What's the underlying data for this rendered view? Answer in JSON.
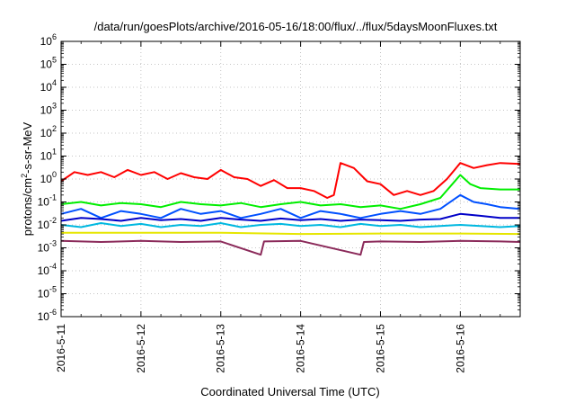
{
  "chart_data": {
    "type": "line",
    "title": "/data/run/goesPlots/archive/2016-05-16/18:00/flux/../flux/5daysMoonFluxes.txt",
    "xlabel": "Coordinated Universal Time (UTC)",
    "ylabel": {
      "base": "protons/cm",
      "sup": "2",
      "rest": "-s-sr-MeV"
    },
    "xscale": "time",
    "yscale": "log",
    "xlim": [
      "2016-05-11",
      "2016-05-16 18:00"
    ],
    "ylim": [
      1e-06,
      1000000.0
    ],
    "x_ticks": [
      "2016-5-11",
      "2016-5-12",
      "2016-5-13",
      "2016-5-14",
      "2016-5-15",
      "2016-5-16"
    ],
    "y_ticks": [
      {
        "value": -6,
        "base": "10",
        "exp": "-6"
      },
      {
        "value": -5,
        "base": "10",
        "exp": "-5"
      },
      {
        "value": -4,
        "base": "10",
        "exp": "-4"
      },
      {
        "value": -3,
        "base": "10",
        "exp": "-3"
      },
      {
        "value": -2,
        "base": "10",
        "exp": "-2"
      },
      {
        "value": -1,
        "base": "10",
        "exp": "-1"
      },
      {
        "value": 0,
        "base": "10",
        "exp": "0"
      },
      {
        "value": 1,
        "base": "10",
        "exp": "1"
      },
      {
        "value": 2,
        "base": "10",
        "exp": "2"
      },
      {
        "value": 3,
        "base": "10",
        "exp": "3"
      },
      {
        "value": 4,
        "base": "10",
        "exp": "4"
      },
      {
        "value": 5,
        "base": "10",
        "exp": "5"
      },
      {
        "value": 6,
        "base": "10",
        "exp": "6"
      }
    ],
    "grid": true,
    "series": [
      {
        "color": "#ff0000",
        "x": [
          "2016-05-11 00:00",
          "2016-05-11 04:00",
          "2016-05-11 08:00",
          "2016-05-11 12:00",
          "2016-05-11 16:00",
          "2016-05-11 20:00",
          "2016-05-12 00:00",
          "2016-05-12 04:00",
          "2016-05-12 08:00",
          "2016-05-12 12:00",
          "2016-05-12 16:00",
          "2016-05-12 20:00",
          "2016-05-13 00:00",
          "2016-05-13 04:00",
          "2016-05-13 08:00",
          "2016-05-13 12:00",
          "2016-05-13 16:00",
          "2016-05-13 20:00",
          "2016-05-14 00:00",
          "2016-05-14 04:00",
          "2016-05-14 08:00",
          "2016-05-14 10:00",
          "2016-05-14 12:00",
          "2016-05-14 16:00",
          "2016-05-14 20:00",
          "2016-05-15 00:00",
          "2016-05-15 04:00",
          "2016-05-15 08:00",
          "2016-05-15 12:00",
          "2016-05-15 16:00",
          "2016-05-15 20:00",
          "2016-05-16 00:00",
          "2016-05-16 04:00",
          "2016-05-16 08:00",
          "2016-05-16 12:00",
          "2016-05-16 18:00"
        ],
        "y": [
          0.8,
          2.0,
          1.5,
          2.0,
          1.2,
          2.5,
          1.5,
          2.0,
          1.0,
          1.8,
          1.2,
          1.0,
          2.5,
          1.2,
          1.0,
          0.5,
          0.9,
          0.4,
          0.4,
          0.3,
          0.15,
          0.2,
          5.0,
          3.0,
          0.8,
          0.6,
          0.2,
          0.3,
          0.2,
          0.3,
          1.0,
          5.0,
          3.0,
          4.0,
          5.0,
          4.5
        ]
      },
      {
        "color": "#00ee00",
        "x": [
          "2016-05-11 00:00",
          "2016-05-11 06:00",
          "2016-05-11 12:00",
          "2016-05-11 18:00",
          "2016-05-12 00:00",
          "2016-05-12 06:00",
          "2016-05-12 12:00",
          "2016-05-12 18:00",
          "2016-05-13 00:00",
          "2016-05-13 06:00",
          "2016-05-13 12:00",
          "2016-05-13 18:00",
          "2016-05-14 00:00",
          "2016-05-14 06:00",
          "2016-05-14 12:00",
          "2016-05-14 18:00",
          "2016-05-15 00:00",
          "2016-05-15 06:00",
          "2016-05-15 12:00",
          "2016-05-15 18:00",
          "2016-05-16 00:00",
          "2016-05-16 03:00",
          "2016-05-16 06:00",
          "2016-05-16 12:00",
          "2016-05-16 18:00"
        ],
        "y": [
          0.08,
          0.1,
          0.07,
          0.09,
          0.08,
          0.06,
          0.1,
          0.08,
          0.07,
          0.09,
          0.06,
          0.08,
          0.1,
          0.07,
          0.08,
          0.06,
          0.07,
          0.05,
          0.08,
          0.15,
          1.5,
          0.6,
          0.4,
          0.35,
          0.35
        ]
      },
      {
        "color": "#00b8e0",
        "x": [
          "2016-05-11 00:00",
          "2016-05-11 06:00",
          "2016-05-11 12:00",
          "2016-05-11 18:00",
          "2016-05-12 00:00",
          "2016-05-12 06:00",
          "2016-05-12 12:00",
          "2016-05-12 18:00",
          "2016-05-13 00:00",
          "2016-05-13 06:00",
          "2016-05-13 12:00",
          "2016-05-13 18:00",
          "2016-05-14 00:00",
          "2016-05-14 06:00",
          "2016-05-14 12:00",
          "2016-05-14 18:00",
          "2016-05-15 00:00",
          "2016-05-15 06:00",
          "2016-05-15 12:00",
          "2016-05-15 18:00",
          "2016-05-16 00:00",
          "2016-05-16 06:00",
          "2016-05-16 12:00",
          "2016-05-16 18:00"
        ],
        "y": [
          0.01,
          0.008,
          0.012,
          0.009,
          0.011,
          0.008,
          0.01,
          0.009,
          0.012,
          0.008,
          0.01,
          0.011,
          0.009,
          0.01,
          0.008,
          0.011,
          0.009,
          0.01,
          0.008,
          0.009,
          0.01,
          0.009,
          0.008,
          0.009
        ]
      },
      {
        "color": "#0050ff",
        "x": [
          "2016-05-11 00:00",
          "2016-05-11 06:00",
          "2016-05-11 12:00",
          "2016-05-11 18:00",
          "2016-05-12 00:00",
          "2016-05-12 06:00",
          "2016-05-12 12:00",
          "2016-05-12 18:00",
          "2016-05-13 00:00",
          "2016-05-13 06:00",
          "2016-05-13 12:00",
          "2016-05-13 18:00",
          "2016-05-14 00:00",
          "2016-05-14 06:00",
          "2016-05-14 12:00",
          "2016-05-14 18:00",
          "2016-05-15 00:00",
          "2016-05-15 06:00",
          "2016-05-15 12:00",
          "2016-05-15 18:00",
          "2016-05-16 00:00",
          "2016-05-16 04:00",
          "2016-05-16 08:00",
          "2016-05-16 12:00",
          "2016-05-16 18:00"
        ],
        "y": [
          0.03,
          0.05,
          0.02,
          0.04,
          0.03,
          0.02,
          0.05,
          0.03,
          0.04,
          0.02,
          0.03,
          0.05,
          0.02,
          0.04,
          0.03,
          0.02,
          0.03,
          0.04,
          0.03,
          0.05,
          0.2,
          0.1,
          0.08,
          0.06,
          0.05
        ]
      },
      {
        "color": "#0000c8",
        "x": [
          "2016-05-11 00:00",
          "2016-05-11 06:00",
          "2016-05-11 12:00",
          "2016-05-11 18:00",
          "2016-05-12 00:00",
          "2016-05-12 06:00",
          "2016-05-12 12:00",
          "2016-05-12 18:00",
          "2016-05-13 00:00",
          "2016-05-13 06:00",
          "2016-05-13 12:00",
          "2016-05-13 18:00",
          "2016-05-14 00:00",
          "2016-05-14 06:00",
          "2016-05-14 12:00",
          "2016-05-14 18:00",
          "2016-05-15 00:00",
          "2016-05-15 06:00",
          "2016-05-15 12:00",
          "2016-05-15 18:00",
          "2016-05-16 00:00",
          "2016-05-16 06:00",
          "2016-05-16 12:00",
          "2016-05-16 18:00"
        ],
        "y": [
          0.015,
          0.02,
          0.018,
          0.015,
          0.02,
          0.016,
          0.018,
          0.015,
          0.02,
          0.017,
          0.015,
          0.019,
          0.016,
          0.018,
          0.015,
          0.017,
          0.016,
          0.015,
          0.017,
          0.018,
          0.03,
          0.025,
          0.02,
          0.02
        ]
      },
      {
        "color": "#e6e600",
        "x": [
          "2016-05-11 00:00",
          "2016-05-12 00:00",
          "2016-05-13 00:00",
          "2016-05-14 00:00",
          "2016-05-15 00:00",
          "2016-05-16 00:00",
          "2016-05-16 18:00"
        ],
        "y": [
          0.0045,
          0.0045,
          0.0045,
          0.004,
          0.0042,
          0.0042,
          0.004
        ]
      },
      {
        "color": "#8b2a5a",
        "x": [
          "2016-05-11 00:00",
          "2016-05-11 12:00",
          "2016-05-12 00:00",
          "2016-05-12 12:00",
          "2016-05-13 00:00",
          "2016-05-13 12:00",
          "2016-05-13 13:00",
          "2016-05-14 00:00",
          "2016-05-14 18:00",
          "2016-05-14 19:00",
          "2016-05-15 00:00",
          "2016-05-15 12:00",
          "2016-05-16 00:00",
          "2016-05-16 12:00",
          "2016-05-16 18:00"
        ],
        "y": [
          0.002,
          0.0018,
          0.002,
          0.0018,
          0.0019,
          0.0005,
          0.0019,
          0.002,
          0.0005,
          0.0018,
          0.0019,
          0.0018,
          0.002,
          0.0019,
          0.0018
        ]
      }
    ]
  }
}
